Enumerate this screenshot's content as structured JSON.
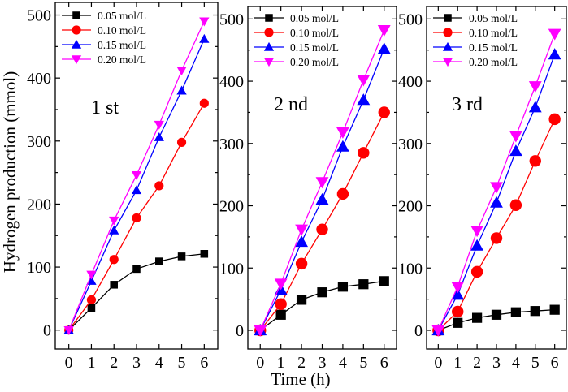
{
  "figure": {
    "ylabel": "Hydrogen production (mmol)",
    "xlabel": "Time (h)"
  },
  "series_colors": {
    "0.05 mol/L": "#000000",
    "0.10 mol/L": "#ff0000",
    "0.15 mol/L": "#0000ff",
    "0.20 mol/L": "#ff00ff"
  },
  "chart_data": [
    {
      "type": "line",
      "title": "1 st",
      "xlabel": "",
      "ylabel": "Hydrogen production (mmol)",
      "xlim": [
        -0.6,
        6.6
      ],
      "ylim": [
        -30,
        520
      ],
      "xticks": [
        0,
        1,
        2,
        3,
        4,
        5,
        6
      ],
      "yticks": [
        0,
        100,
        200,
        300,
        400,
        500
      ],
      "x": [
        0,
        1,
        2,
        3,
        4,
        5,
        6
      ],
      "series": [
        {
          "name": "0.05 mol/L",
          "marker": "square",
          "values": [
            0,
            35,
            72,
            97,
            109,
            117,
            121
          ]
        },
        {
          "name": "0.10 mol/L",
          "marker": "circle",
          "values": [
            0,
            48,
            112,
            178,
            229,
            298,
            360
          ]
        },
        {
          "name": "0.15 mol/L",
          "marker": "triangle-up",
          "values": [
            0,
            78,
            158,
            222,
            306,
            380,
            462
          ]
        },
        {
          "name": "0.20 mol/L",
          "marker": "triangle-down",
          "values": [
            0,
            88,
            174,
            246,
            326,
            412,
            490
          ]
        }
      ]
    },
    {
      "type": "line",
      "title": "2 nd",
      "xlabel": "Time (h)",
      "ylabel": "",
      "xlim": [
        -0.6,
        6.6
      ],
      "ylim": [
        -30,
        520
      ],
      "xticks": [
        0,
        1,
        2,
        3,
        4,
        5,
        6
      ],
      "yticks": [
        0,
        100,
        200,
        300,
        400,
        500
      ],
      "x": [
        0,
        1,
        2,
        3,
        4,
        5,
        6
      ],
      "series": [
        {
          "name": "0.05 mol/L",
          "marker": "square",
          "values": [
            0,
            25,
            49,
            61,
            70,
            74,
            79
          ]
        },
        {
          "name": "0.10 mol/L",
          "marker": "circle",
          "values": [
            0,
            42,
            107,
            162,
            219,
            285,
            350
          ]
        },
        {
          "name": "0.15 mol/L",
          "marker": "triangle-up",
          "values": [
            0,
            65,
            142,
            210,
            295,
            370,
            452
          ]
        },
        {
          "name": "0.20 mol/L",
          "marker": "triangle-down",
          "values": [
            0,
            75,
            162,
            238,
            318,
            402,
            482
          ]
        }
      ]
    },
    {
      "type": "line",
      "title": "3 rd",
      "xlabel": "",
      "ylabel": "",
      "xlim": [
        -0.6,
        6.6
      ],
      "ylim": [
        -30,
        520
      ],
      "xticks": [
        0,
        1,
        2,
        3,
        4,
        5,
        6
      ],
      "yticks": [
        0,
        100,
        200,
        300,
        400,
        500
      ],
      "x": [
        0,
        1,
        2,
        3,
        4,
        5,
        6
      ],
      "series": [
        {
          "name": "0.05 mol/L",
          "marker": "square",
          "values": [
            0,
            12,
            20,
            25,
            29,
            31,
            33
          ]
        },
        {
          "name": "0.10 mol/L",
          "marker": "circle",
          "values": [
            0,
            30,
            94,
            148,
            201,
            272,
            339
          ]
        },
        {
          "name": "0.15 mol/L",
          "marker": "triangle-up",
          "values": [
            0,
            57,
            136,
            205,
            288,
            358,
            443
          ]
        },
        {
          "name": "0.20 mol/L",
          "marker": "triangle-down",
          "values": [
            0,
            70,
            160,
            230,
            312,
            392,
            476
          ]
        }
      ]
    }
  ]
}
